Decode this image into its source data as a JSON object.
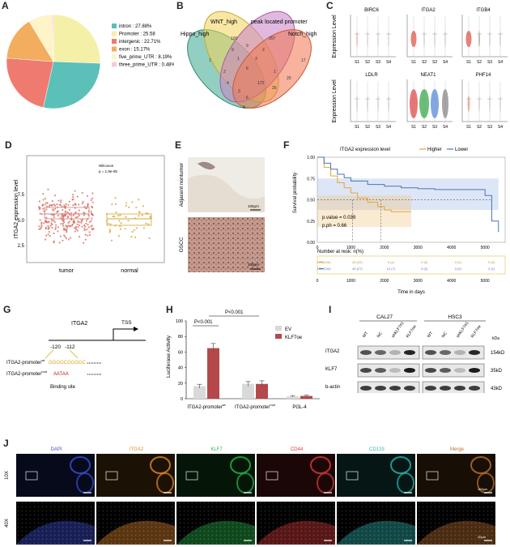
{
  "panels": {
    "A": {
      "letter": "A",
      "legend": [
        {
          "label": "intron : 27.88%",
          "value": 27.88,
          "color": "#5bc0b8"
        },
        {
          "label": "Promoter : 25.58",
          "value": 25.58,
          "color": "#f5f0a8"
        },
        {
          "label": "intergenic : 22.71%",
          "value": 22.71,
          "color": "#ef7a6f"
        },
        {
          "label": "exon : 15.17%",
          "value": 15.17,
          "color": "#f2ad5f"
        },
        {
          "label": "five_prime_UTR : 8.19%",
          "value": 8.19,
          "color": "#fff3c8"
        },
        {
          "label": "three_prime_UTR : 0.48%",
          "value": 0.48,
          "color": "#f8c9d9"
        }
      ]
    },
    "B": {
      "letter": "B",
      "sets": [
        "WNT_high",
        "peak located promoter",
        "Hippo_high",
        "Notch_high"
      ],
      "counts": [
        "100",
        "207",
        "1",
        "17",
        "9",
        "9",
        "2",
        "1",
        "3",
        "2",
        "6",
        "1",
        "20",
        "4",
        "172",
        "26",
        "3",
        "6",
        "4"
      ]
    },
    "C": {
      "letter": "C",
      "genes": [
        "BIRC6",
        "ITGA2",
        "ITGB4",
        "LDLR",
        "NEAT1",
        "PHF14"
      ],
      "ylabel": "Expression Level",
      "samples": [
        "S1",
        "S2",
        "S3",
        "S4"
      ]
    },
    "D": {
      "letter": "D",
      "ylabel": "ITGA2 expression level",
      "yticks": [
        "7.5",
        "5.0",
        "2.5"
      ],
      "xlabels": [
        "tumor",
        "normal"
      ],
      "test": "Wilcoxon",
      "pval": "p = 1.8e-05"
    },
    "E": {
      "letter": "E",
      "labels": [
        "Adjacent nontumor",
        "OSCC"
      ],
      "scale": [
        "100μm",
        "100μm"
      ]
    },
    "F": {
      "letter": "F",
      "title": "ITGA2 expression level",
      "legend": [
        "Higher",
        "Lower"
      ],
      "ylabel": "Survival probability",
      "yticks": [
        "1.00",
        "0.75",
        "0.50",
        "0.25",
        "0.00"
      ],
      "xticks": [
        "0",
        "1000",
        "2000",
        "3000",
        "4000",
        "5000"
      ],
      "pvalue": "p.value = 0.039",
      "pph": "p.ph = 0.66",
      "risk_title": "Number at resk: n(%)",
      "xlabel": "Time in days",
      "risk_rows": [
        [
          "115 (100)",
          "25 (22)",
          "5 (4)",
          "0 (0)",
          "0 (0)",
          "0 (0)"
        ],
        [
          "151 (100)",
          "43 (27)",
          "12 (7)",
          "3 (2)",
          "3 (2)",
          "2 (1)"
        ]
      ],
      "chart_data": {
        "type": "line",
        "series": [
          {
            "name": "Higher",
            "x": [
              0,
              200,
              400,
              600,
              800,
              1000,
              1200,
              1500,
              1800,
              2000,
              2200,
              2500,
              2800
            ],
            "y": [
              1.0,
              0.88,
              0.78,
              0.7,
              0.64,
              0.58,
              0.52,
              0.47,
              0.42,
              0.38,
              0.36,
              0.36,
              0.36
            ]
          },
          {
            "name": "Lower",
            "x": [
              0,
              200,
              400,
              600,
              800,
              1000,
              1500,
              2000,
              2500,
              3000,
              3500,
              4000,
              4500,
              5000,
              5200,
              5400
            ],
            "y": [
              1.0,
              0.93,
              0.86,
              0.8,
              0.76,
              0.72,
              0.68,
              0.66,
              0.64,
              0.63,
              0.62,
              0.62,
              0.62,
              0.55,
              0.25,
              0.12
            ]
          }
        ],
        "xlim": [
          0,
          5600
        ],
        "ylim": [
          0,
          1
        ]
      }
    },
    "G": {
      "letter": "G",
      "gene": "ITGA2",
      "tss": "TSS",
      "pos1": "-120",
      "pos2": "-112",
      "wt_label": "ITGA2-promoter",
      "wt_sup": "wt",
      "wt_seq": "GGGGCGGGGC",
      "mut_label": "ITGA2-promoter",
      "mut_sup": "mut",
      "mut_seq": "AATAA",
      "binding": "Binding site"
    },
    "H": {
      "letter": "H",
      "ylabel": "Luciferase Activity",
      "yticks": [
        "100",
        "80",
        "60",
        "40",
        "20",
        "0"
      ],
      "legend": [
        "EV",
        "KLF7oe"
      ],
      "p1": "P<0.001",
      "p2": "P<0.001",
      "xlabels": [
        "ITGA2-promoter",
        "ITGA2-promoter",
        "PGL-4"
      ],
      "xsup": [
        "wt",
        "mut",
        ""
      ],
      "chart_data": {
        "type": "bar",
        "categories": [
          "ITGA2-promoter wt",
          "ITGA2-promoter mut",
          "PGL-4"
        ],
        "series": [
          {
            "name": "EV",
            "values": [
              16,
              19,
              3
            ],
            "err": [
              2.5,
              3,
              1
            ]
          },
          {
            "name": "KLF7oe",
            "values": [
              65,
              19,
              3.5
            ],
            "err": [
              6,
              4,
              1
            ]
          }
        ],
        "ylim": [
          0,
          100
        ]
      }
    },
    "I": {
      "letter": "I",
      "cells": [
        "CAL27",
        "HSC3"
      ],
      "lanes": [
        "WT",
        "NC",
        "shKLF7#1",
        "KLF7oe"
      ],
      "kda": "kDa",
      "rows": [
        {
          "name": "ITGA2",
          "size": "154kD"
        },
        {
          "name": "KLF7",
          "size": "35kD"
        },
        {
          "name": "b-actin",
          "size": "43kD"
        }
      ]
    },
    "J": {
      "letter": "J",
      "channels": [
        "DAPI",
        "ITGA2",
        "KLF7",
        "CD44",
        "CD133",
        "Merge"
      ],
      "channel_colors": [
        "#3a4fd8",
        "#e58a2a",
        "#28b84a",
        "#e03a3a",
        "#2ab8b0",
        "#c07030"
      ],
      "mags": [
        "10X",
        "40X"
      ],
      "scale": [
        "100μm",
        "20μm"
      ]
    }
  }
}
